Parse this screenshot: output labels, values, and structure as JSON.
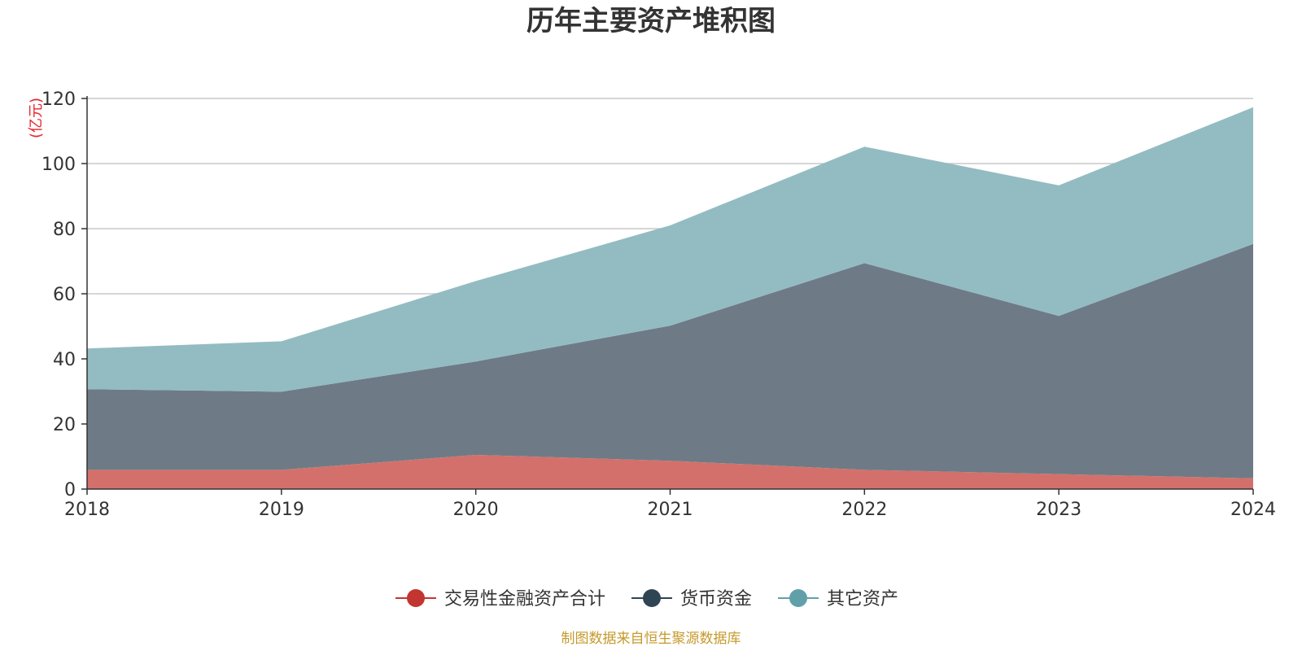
{
  "chart_data": {
    "type": "area",
    "stacked": true,
    "title": "历年主要资产堆积图",
    "ylabel": "(亿元)",
    "categories": [
      "2018",
      "2019",
      "2020",
      "2021",
      "2022",
      "2023",
      "2024"
    ],
    "ylim": [
      0,
      120
    ],
    "yticks": [
      0,
      20,
      40,
      60,
      80,
      100,
      120
    ],
    "grid": true,
    "legend_position": "bottom",
    "series": [
      {
        "name": "交易性金融资产合计",
        "color": "#c23531",
        "fill": "#d4706b",
        "values": [
          5.9,
          5.9,
          10.5,
          8.7,
          5.9,
          4.6,
          3.3
        ]
      },
      {
        "name": "货币资金",
        "color": "#2f4554",
        "fill": "#6e7b86",
        "values": [
          24.8,
          24.0,
          28.7,
          41.5,
          63.5,
          48.6,
          72.0
        ]
      },
      {
        "name": "其它资产",
        "color": "#61a0a8",
        "fill": "#93bcc2",
        "values": [
          12.5,
          15.5,
          24.7,
          30.8,
          35.8,
          40.1,
          42.0
        ]
      }
    ],
    "source_note": "制图数据来自恒生聚源数据库"
  }
}
